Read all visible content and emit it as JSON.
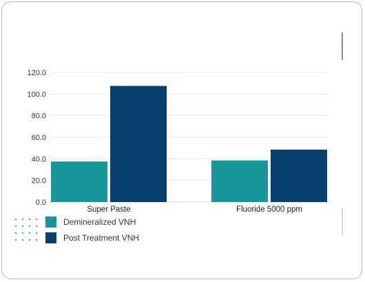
{
  "chart_data": {
    "type": "bar",
    "categories": [
      "Super Paste",
      "Fluoride 5000 ppm"
    ],
    "series": [
      {
        "name": "Demineralized VNH",
        "values": [
          37.5,
          38.5
        ],
        "color": "#17979a"
      },
      {
        "name": "Post Treatment VNH",
        "values": [
          107.5,
          48.5
        ],
        "color": "#073f6e"
      }
    ],
    "title": "",
    "xlabel": "",
    "ylabel": "",
    "ylim": [
      0,
      120
    ],
    "yticks": [
      "0.0",
      "20.0",
      "40.0",
      "60.0",
      "80.0",
      "100.0",
      "120.0"
    ],
    "grid": true,
    "legend_position": "bottom-left"
  }
}
